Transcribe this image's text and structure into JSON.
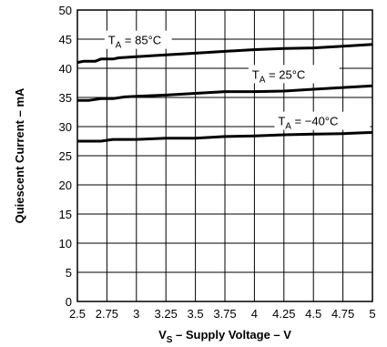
{
  "chart_data": {
    "type": "line",
    "xlabel": {
      "main": "V",
      "sub": "S",
      "rest": " – Supply Voltage – V"
    },
    "ylabel": "Quiescent Current – mA",
    "xlim": [
      2.5,
      5
    ],
    "ylim": [
      0,
      50
    ],
    "x_ticks": [
      "2.5",
      "2.75",
      "3",
      "3.25",
      "3.5",
      "3.75",
      "4",
      "4.25",
      "4.5",
      "4.75",
      "5"
    ],
    "y_ticks": [
      "0",
      "5",
      "10",
      "15",
      "20",
      "25",
      "30",
      "35",
      "40",
      "45",
      "50"
    ],
    "grid": true,
    "series": [
      {
        "name": "TA = 85°C",
        "label": {
          "main": "T",
          "sub": "A",
          "rest": " = 85°C"
        },
        "x": [
          2.5,
          2.55,
          2.65,
          2.7,
          2.8,
          2.85,
          3.0,
          3.25,
          3.5,
          3.75,
          4.0,
          4.25,
          4.5,
          4.75,
          5.0
        ],
        "y": [
          41.0,
          41.2,
          41.2,
          41.6,
          41.6,
          41.8,
          42.0,
          42.3,
          42.6,
          42.9,
          43.2,
          43.4,
          43.5,
          43.8,
          44.1
        ]
      },
      {
        "name": "TA = 25°C",
        "label": {
          "main": "T",
          "sub": "A",
          "rest": " = 25°C"
        },
        "x": [
          2.5,
          2.6,
          2.7,
          2.8,
          2.9,
          3.0,
          3.25,
          3.5,
          3.75,
          4.0,
          4.25,
          4.5,
          4.75,
          5.0
        ],
        "y": [
          34.5,
          34.5,
          34.8,
          34.8,
          35.1,
          35.2,
          35.4,
          35.7,
          36.0,
          36.0,
          36.1,
          36.4,
          36.7,
          37.0
        ]
      },
      {
        "name": "TA = −40°C",
        "label": {
          "main": "T",
          "sub": "A",
          "rest": " = −40°C"
        },
        "x": [
          2.5,
          2.7,
          2.8,
          3.0,
          3.25,
          3.5,
          3.75,
          4.0,
          4.25,
          4.5,
          4.75,
          5.0
        ],
        "y": [
          27.5,
          27.5,
          27.8,
          27.8,
          28.0,
          28.0,
          28.3,
          28.4,
          28.6,
          28.7,
          28.8,
          29.0
        ]
      }
    ]
  }
}
